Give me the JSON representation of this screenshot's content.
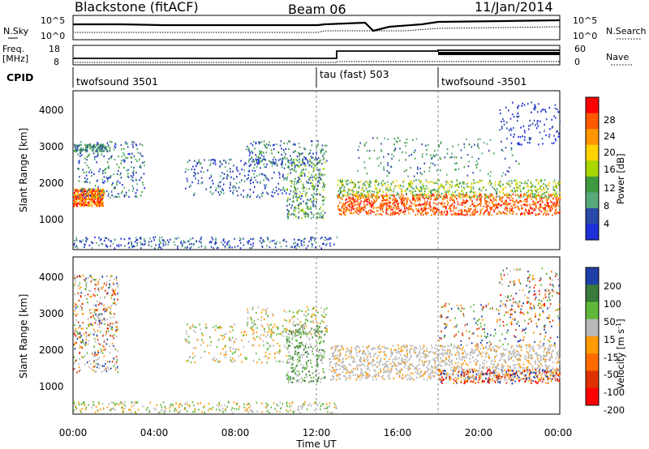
{
  "header": {
    "title": "Blackstone (fitACF)",
    "beam": "Beam 06",
    "date": "11/Jan/2014"
  },
  "nsky_panel": {
    "left_label": "N.Sky",
    "left_ticks": [
      "10^5",
      "10^0"
    ],
    "right_ticks": [
      "10^5",
      "10^0"
    ],
    "right_label": "N.Search"
  },
  "freq_panel": {
    "left_label_1": "Freq.",
    "left_label_2": "[MHz]",
    "left_ticks": [
      "18",
      "8"
    ],
    "right_ticks": [
      "60",
      "0"
    ],
    "right_label": "Nave"
  },
  "cpid": {
    "label": "CPID",
    "segments": [
      "twofsound 3501",
      "tau (fast) 503",
      "twofsound -3501"
    ]
  },
  "power_colorbar": {
    "label": "Power [dB]",
    "ticks": [
      "28",
      "24",
      "20",
      "16",
      "12",
      "8",
      "4"
    ],
    "colors": [
      "#ff0000",
      "#ff5a00",
      "#ff9600",
      "#ffd200",
      "#a8d800",
      "#3e9a3e",
      "#58aa7a",
      "#2a4aa8",
      "#1c2fd8"
    ]
  },
  "velocity_colorbar": {
    "label": "Velocity [m s",
    "label_sup": "-1",
    "label_end": "]",
    "ticks": [
      "200",
      "100",
      "50",
      "15",
      "-15",
      "-50",
      "-100",
      "-200"
    ],
    "colors": [
      "#1f3fa8",
      "#3a7a3a",
      "#5fb83a",
      "#b8b8b8",
      "#ff9a00",
      "#ff6a00",
      "#e03000",
      "#ff0000"
    ]
  },
  "chart_data": [
    {
      "type": "heatmap",
      "panel": "Power",
      "ylabel": "Slant Range [km]",
      "yticks": [
        "4000",
        "3000",
        "2000",
        "1000"
      ],
      "ylim": [
        0,
        4500
      ],
      "xlim": [
        0,
        24
      ],
      "xticks": [
        "00:00",
        "04:00",
        "08:00",
        "12:00",
        "16:00",
        "20:00",
        "00:00"
      ],
      "xlabel": "Time UT",
      "bands": [
        {
          "x": [
            0,
            1.5
          ],
          "y": [
            1200,
            2000
          ],
          "value": "high"
        },
        {
          "x": [
            0.2,
            3.5
          ],
          "y": [
            1400,
            2600
          ],
          "value": "mid"
        },
        {
          "x": [
            6,
            10
          ],
          "y": [
            1500,
            2500
          ],
          "value": "low"
        },
        {
          "x": [
            10,
            12.5
          ],
          "y": [
            800,
            2800
          ],
          "value": "mid"
        },
        {
          "x": [
            13,
            24
          ],
          "y": [
            900,
            1800
          ],
          "value": "high"
        },
        {
          "x": [
            0,
            24
          ],
          "y": [
            0,
            400
          ],
          "value": "low"
        }
      ]
    },
    {
      "type": "heatmap",
      "panel": "Velocity",
      "ylabel": "Slant Range [km]",
      "yticks": [
        "4000",
        "3000",
        "2000",
        "1000"
      ],
      "ylim": [
        0,
        4500
      ],
      "xlim": [
        0,
        24
      ],
      "bands": [
        {
          "x": [
            0,
            2.5
          ],
          "y": [
            1200,
            4000
          ],
          "value": "mixed"
        },
        {
          "x": [
            12.5,
            18
          ],
          "y": [
            1000,
            2000
          ],
          "value": "ground-scatter"
        },
        {
          "x": [
            18,
            24
          ],
          "y": [
            1000,
            2000
          ],
          "value": "ground-scatter"
        },
        {
          "x": [
            10,
            12.5
          ],
          "y": [
            800,
            2800
          ],
          "value": "positive"
        }
      ]
    }
  ]
}
